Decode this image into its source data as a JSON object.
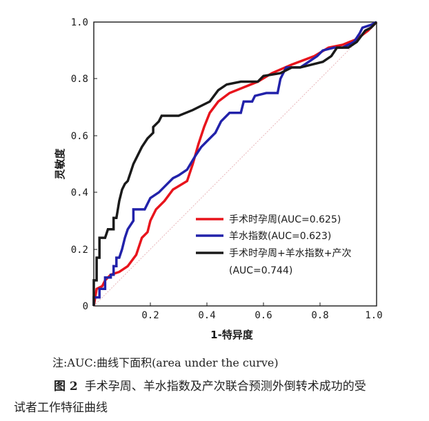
{
  "chart_data": {
    "type": "line",
    "title": "",
    "xlabel": "1-特异度",
    "ylabel": "灵敏度",
    "xlim": [
      0,
      1
    ],
    "ylim": [
      0,
      1
    ],
    "x_ticks": [
      "0.2",
      "0.4",
      "0.6",
      "0.8",
      "1.0"
    ],
    "y_ticks": [
      "0",
      "0.2",
      "0.4",
      "0.6",
      "0.8",
      "1.0"
    ],
    "grid": false,
    "legend_position": "bottom-right",
    "reference_line": {
      "name": "diagonal",
      "color": "#e8b4b8",
      "points": [
        [
          0,
          0
        ],
        [
          1,
          1
        ]
      ]
    },
    "series": [
      {
        "name": "手术时孕周(AUC=0.625)",
        "color": "#e8141c",
        "points": [
          [
            0,
            0
          ],
          [
            0.01,
            0.06
          ],
          [
            0.03,
            0.07
          ],
          [
            0.04,
            0.09
          ],
          [
            0.06,
            0.11
          ],
          [
            0.09,
            0.12
          ],
          [
            0.12,
            0.14
          ],
          [
            0.15,
            0.18
          ],
          [
            0.17,
            0.24
          ],
          [
            0.19,
            0.26
          ],
          [
            0.2,
            0.3
          ],
          [
            0.22,
            0.34
          ],
          [
            0.25,
            0.37
          ],
          [
            0.28,
            0.41
          ],
          [
            0.33,
            0.44
          ],
          [
            0.35,
            0.5
          ],
          [
            0.37,
            0.57
          ],
          [
            0.39,
            0.63
          ],
          [
            0.41,
            0.68
          ],
          [
            0.44,
            0.72
          ],
          [
            0.48,
            0.75
          ],
          [
            0.53,
            0.77
          ],
          [
            0.58,
            0.79
          ],
          [
            0.63,
            0.82
          ],
          [
            0.7,
            0.85
          ],
          [
            0.78,
            0.88
          ],
          [
            0.83,
            0.91
          ],
          [
            0.88,
            0.92
          ],
          [
            0.93,
            0.94
          ],
          [
            0.97,
            0.97
          ],
          [
            1,
            1
          ]
        ]
      },
      {
        "name": "羊水指数(AUC=0.623)",
        "color": "#2222aa",
        "points": [
          [
            0,
            0
          ],
          [
            0,
            0.03
          ],
          [
            0.02,
            0.03
          ],
          [
            0.02,
            0.06
          ],
          [
            0.04,
            0.06
          ],
          [
            0.04,
            0.1
          ],
          [
            0.06,
            0.1
          ],
          [
            0.06,
            0.11
          ],
          [
            0.07,
            0.11
          ],
          [
            0.07,
            0.14
          ],
          [
            0.08,
            0.14
          ],
          [
            0.08,
            0.17
          ],
          [
            0.09,
            0.17
          ],
          [
            0.1,
            0.2
          ],
          [
            0.11,
            0.24
          ],
          [
            0.12,
            0.27
          ],
          [
            0.14,
            0.3
          ],
          [
            0.14,
            0.34
          ],
          [
            0.18,
            0.34
          ],
          [
            0.2,
            0.38
          ],
          [
            0.23,
            0.4
          ],
          [
            0.26,
            0.43
          ],
          [
            0.28,
            0.45
          ],
          [
            0.3,
            0.46
          ],
          [
            0.33,
            0.48
          ],
          [
            0.36,
            0.53
          ],
          [
            0.38,
            0.56
          ],
          [
            0.4,
            0.58
          ],
          [
            0.43,
            0.61
          ],
          [
            0.45,
            0.65
          ],
          [
            0.48,
            0.68
          ],
          [
            0.52,
            0.68
          ],
          [
            0.53,
            0.72
          ],
          [
            0.56,
            0.72
          ],
          [
            0.57,
            0.74
          ],
          [
            0.61,
            0.75
          ],
          [
            0.65,
            0.75
          ],
          [
            0.66,
            0.8
          ],
          [
            0.68,
            0.84
          ],
          [
            0.73,
            0.84
          ],
          [
            0.76,
            0.86
          ],
          [
            0.79,
            0.88
          ],
          [
            0.81,
            0.9
          ],
          [
            0.85,
            0.91
          ],
          [
            0.88,
            0.91
          ],
          [
            0.92,
            0.93
          ],
          [
            0.94,
            0.96
          ],
          [
            0.95,
            0.98
          ],
          [
            0.98,
            0.99
          ],
          [
            1,
            1
          ]
        ]
      },
      {
        "name": "手术时孕周+羊水指数+产次",
        "legend_continuation": "(AUC=0.744)",
        "color": "#1a1a1a",
        "points": [
          [
            0,
            0
          ],
          [
            0,
            0.09
          ],
          [
            0.01,
            0.09
          ],
          [
            0.01,
            0.17
          ],
          [
            0.02,
            0.17
          ],
          [
            0.02,
            0.24
          ],
          [
            0.04,
            0.24
          ],
          [
            0.05,
            0.27
          ],
          [
            0.07,
            0.27
          ],
          [
            0.07,
            0.31
          ],
          [
            0.08,
            0.31
          ],
          [
            0.09,
            0.37
          ],
          [
            0.1,
            0.41
          ],
          [
            0.11,
            0.43
          ],
          [
            0.12,
            0.44
          ],
          [
            0.13,
            0.47
          ],
          [
            0.14,
            0.5
          ],
          [
            0.15,
            0.52
          ],
          [
            0.17,
            0.56
          ],
          [
            0.19,
            0.59
          ],
          [
            0.21,
            0.61
          ],
          [
            0.21,
            0.63
          ],
          [
            0.23,
            0.65
          ],
          [
            0.24,
            0.67
          ],
          [
            0.3,
            0.67
          ],
          [
            0.35,
            0.69
          ],
          [
            0.41,
            0.72
          ],
          [
            0.44,
            0.76
          ],
          [
            0.47,
            0.78
          ],
          [
            0.52,
            0.79
          ],
          [
            0.58,
            0.79
          ],
          [
            0.6,
            0.81
          ],
          [
            0.66,
            0.82
          ],
          [
            0.7,
            0.84
          ],
          [
            0.73,
            0.84
          ],
          [
            0.81,
            0.86
          ],
          [
            0.84,
            0.88
          ],
          [
            0.86,
            0.91
          ],
          [
            0.9,
            0.91
          ],
          [
            0.93,
            0.93
          ],
          [
            0.96,
            0.97
          ],
          [
            0.98,
            0.98
          ],
          [
            1,
            1
          ]
        ]
      }
    ]
  },
  "note": "注:AUC:曲线下面积(area under the curve)",
  "caption": {
    "figure_label": "图 2",
    "text_line1": "手术孕周、羊水指数及产次联合预测外倒转术成功的受",
    "text_line2": "试者工作特征曲线"
  },
  "colors": {
    "background": "#ffffff",
    "axis": "#1a1a1a"
  }
}
